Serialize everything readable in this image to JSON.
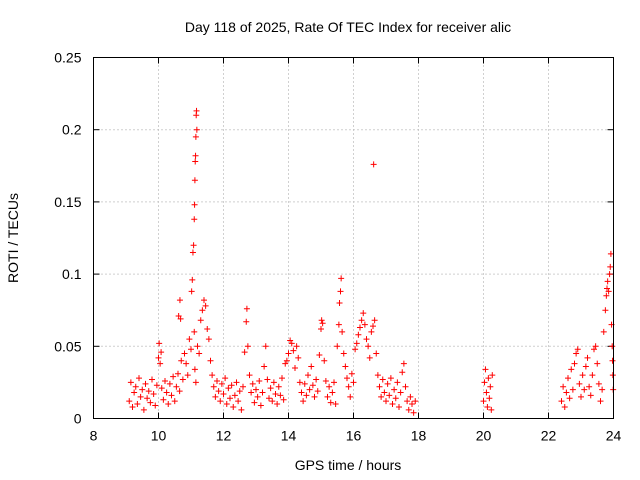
{
  "chart_data": {
    "type": "scatter",
    "title": "Day 118 of 2025, Rate Of TEC Index for receiver alic",
    "xlabel": "GPS time / hours",
    "ylabel": "ROTI / TECUs",
    "xlim": [
      8,
      24
    ],
    "ylim": [
      0,
      0.25
    ],
    "x_ticks": [
      8,
      10,
      12,
      14,
      16,
      18,
      20,
      22,
      24
    ],
    "x_tick_labels": [
      "8",
      "10",
      "12",
      "14",
      "16",
      "18",
      "20",
      "22",
      "24"
    ],
    "y_ticks": [
      0,
      0.05,
      0.1,
      0.15,
      0.2,
      0.25
    ],
    "y_tick_labels": [
      "0",
      "0.05",
      "0.1",
      "0.15",
      "0.2",
      "0.25"
    ],
    "grid": true,
    "marker": "+",
    "color": "#ff0000",
    "series": [
      {
        "name": "ROTI",
        "points": [
          [
            9.1,
            0.012
          ],
          [
            9.15,
            0.025
          ],
          [
            9.2,
            0.008
          ],
          [
            9.25,
            0.018
          ],
          [
            9.3,
            0.022
          ],
          [
            9.35,
            0.01
          ],
          [
            9.4,
            0.028
          ],
          [
            9.45,
            0.015
          ],
          [
            9.5,
            0.02
          ],
          [
            9.55,
            0.006
          ],
          [
            9.6,
            0.024
          ],
          [
            9.65,
            0.014
          ],
          [
            9.7,
            0.019
          ],
          [
            9.75,
            0.011
          ],
          [
            9.8,
            0.027
          ],
          [
            9.85,
            0.017
          ],
          [
            9.9,
            0.009
          ],
          [
            9.95,
            0.023
          ],
          [
            10.0,
            0.042
          ],
          [
            10.02,
            0.052
          ],
          [
            10.05,
            0.038
          ],
          [
            10.08,
            0.046
          ],
          [
            10.1,
            0.021
          ],
          [
            10.15,
            0.013
          ],
          [
            10.2,
            0.026
          ],
          [
            10.25,
            0.018
          ],
          [
            10.3,
            0.01
          ],
          [
            10.35,
            0.024
          ],
          [
            10.4,
            0.016
          ],
          [
            10.45,
            0.029
          ],
          [
            10.5,
            0.012
          ],
          [
            10.55,
            0.022
          ],
          [
            10.6,
            0.031
          ],
          [
            10.65,
            0.019
          ],
          [
            10.62,
            0.071
          ],
          [
            10.68,
            0.069
          ],
          [
            10.66,
            0.082
          ],
          [
            10.7,
            0.04
          ],
          [
            10.75,
            0.027
          ],
          [
            10.8,
            0.045
          ],
          [
            10.85,
            0.038
          ],
          [
            10.9,
            0.03
          ],
          [
            10.95,
            0.055
          ],
          [
            11.0,
            0.048
          ],
          [
            11.02,
            0.088
          ],
          [
            11.04,
            0.096
          ],
          [
            11.06,
            0.115
          ],
          [
            11.08,
            0.12
          ],
          [
            11.1,
            0.138
          ],
          [
            11.11,
            0.148
          ],
          [
            11.12,
            0.165
          ],
          [
            11.13,
            0.178
          ],
          [
            11.14,
            0.182
          ],
          [
            11.15,
            0.195
          ],
          [
            11.16,
            0.21
          ],
          [
            11.17,
            0.213
          ],
          [
            11.18,
            0.2
          ],
          [
            11.1,
            0.06
          ],
          [
            11.12,
            0.034
          ],
          [
            11.15,
            0.025
          ],
          [
            11.2,
            0.05
          ],
          [
            11.25,
            0.045
          ],
          [
            11.3,
            0.068
          ],
          [
            11.35,
            0.075
          ],
          [
            11.4,
            0.082
          ],
          [
            11.45,
            0.078
          ],
          [
            11.5,
            0.062
          ],
          [
            11.55,
            0.055
          ],
          [
            11.6,
            0.04
          ],
          [
            11.65,
            0.03
          ],
          [
            11.7,
            0.022
          ],
          [
            11.75,
            0.015
          ],
          [
            11.8,
            0.026
          ],
          [
            11.85,
            0.019
          ],
          [
            11.9,
            0.012
          ],
          [
            11.95,
            0.024
          ],
          [
            12.0,
            0.017
          ],
          [
            12.05,
            0.028
          ],
          [
            12.1,
            0.01
          ],
          [
            12.15,
            0.021
          ],
          [
            12.2,
            0.014
          ],
          [
            12.25,
            0.023
          ],
          [
            12.3,
            0.008
          ],
          [
            12.35,
            0.016
          ],
          [
            12.4,
            0.025
          ],
          [
            12.45,
            0.012
          ],
          [
            12.5,
            0.019
          ],
          [
            12.55,
            0.006
          ],
          [
            12.6,
            0.022
          ],
          [
            12.65,
            0.046
          ],
          [
            12.7,
            0.067
          ],
          [
            12.72,
            0.076
          ],
          [
            12.75,
            0.05
          ],
          [
            12.8,
            0.03
          ],
          [
            12.85,
            0.018
          ],
          [
            12.9,
            0.024
          ],
          [
            12.95,
            0.011
          ],
          [
            13.0,
            0.02
          ],
          [
            13.05,
            0.015
          ],
          [
            13.1,
            0.026
          ],
          [
            13.15,
            0.009
          ],
          [
            13.2,
            0.018
          ],
          [
            13.25,
            0.036
          ],
          [
            13.3,
            0.05
          ],
          [
            13.35,
            0.027
          ],
          [
            13.4,
            0.014
          ],
          [
            13.45,
            0.021
          ],
          [
            13.5,
            0.012
          ],
          [
            13.55,
            0.025
          ],
          [
            13.6,
            0.017
          ],
          [
            13.65,
            0.01
          ],
          [
            13.7,
            0.022
          ],
          [
            13.75,
            0.016
          ],
          [
            13.8,
            0.028
          ],
          [
            13.85,
            0.013
          ],
          [
            13.9,
            0.038
          ],
          [
            13.95,
            0.04
          ],
          [
            14.0,
            0.045
          ],
          [
            14.05,
            0.054
          ],
          [
            14.1,
            0.052
          ],
          [
            14.15,
            0.047
          ],
          [
            14.2,
            0.035
          ],
          [
            14.25,
            0.05
          ],
          [
            14.3,
            0.042
          ],
          [
            14.35,
            0.025
          ],
          [
            14.4,
            0.018
          ],
          [
            14.45,
            0.012
          ],
          [
            14.5,
            0.024
          ],
          [
            14.55,
            0.016
          ],
          [
            14.6,
            0.03
          ],
          [
            14.65,
            0.02
          ],
          [
            14.7,
            0.036
          ],
          [
            14.75,
            0.023
          ],
          [
            14.8,
            0.015
          ],
          [
            14.85,
            0.027
          ],
          [
            14.9,
            0.019
          ],
          [
            14.95,
            0.044
          ],
          [
            15.0,
            0.062
          ],
          [
            15.02,
            0.068
          ],
          [
            15.05,
            0.066
          ],
          [
            15.1,
            0.04
          ],
          [
            15.15,
            0.026
          ],
          [
            15.2,
            0.015
          ],
          [
            15.25,
            0.022
          ],
          [
            15.3,
            0.011
          ],
          [
            15.35,
            0.018
          ],
          [
            15.4,
            0.025
          ],
          [
            15.45,
            0.01
          ],
          [
            15.5,
            0.05
          ],
          [
            15.55,
            0.065
          ],
          [
            15.57,
            0.08
          ],
          [
            15.6,
            0.088
          ],
          [
            15.62,
            0.097
          ],
          [
            15.65,
            0.06
          ],
          [
            15.7,
            0.045
          ],
          [
            15.75,
            0.036
          ],
          [
            15.8,
            0.028
          ],
          [
            15.85,
            0.022
          ],
          [
            15.9,
            0.015
          ],
          [
            15.95,
            0.031
          ],
          [
            16.0,
            0.025
          ],
          [
            16.05,
            0.048
          ],
          [
            16.1,
            0.052
          ],
          [
            16.15,
            0.058
          ],
          [
            16.2,
            0.063
          ],
          [
            16.25,
            0.068
          ],
          [
            16.3,
            0.073
          ],
          [
            16.35,
            0.065
          ],
          [
            16.4,
            0.055
          ],
          [
            16.45,
            0.05
          ],
          [
            16.5,
            0.042
          ],
          [
            16.55,
            0.06
          ],
          [
            16.6,
            0.064
          ],
          [
            16.62,
            0.176
          ],
          [
            16.65,
            0.068
          ],
          [
            16.7,
            0.045
          ],
          [
            16.75,
            0.03
          ],
          [
            16.8,
            0.022
          ],
          [
            16.85,
            0.015
          ],
          [
            16.9,
            0.027
          ],
          [
            16.95,
            0.018
          ],
          [
            17.0,
            0.012
          ],
          [
            17.05,
            0.024
          ],
          [
            17.1,
            0.016
          ],
          [
            17.15,
            0.028
          ],
          [
            17.2,
            0.01
          ],
          [
            17.25,
            0.02
          ],
          [
            17.3,
            0.014
          ],
          [
            17.35,
            0.025
          ],
          [
            17.4,
            0.008
          ],
          [
            17.45,
            0.018
          ],
          [
            17.5,
            0.032
          ],
          [
            17.55,
            0.038
          ],
          [
            17.6,
            0.022
          ],
          [
            17.65,
            0.012
          ],
          [
            17.7,
            0.006
          ],
          [
            17.75,
            0.015
          ],
          [
            17.8,
            0.01
          ],
          [
            17.85,
            0.004
          ],
          [
            17.9,
            0.012
          ],
          [
            20.0,
            0.012
          ],
          [
            20.03,
            0.025
          ],
          [
            20.06,
            0.034
          ],
          [
            20.09,
            0.018
          ],
          [
            20.12,
            0.008
          ],
          [
            20.15,
            0.028
          ],
          [
            20.18,
            0.014
          ],
          [
            20.21,
            0.022
          ],
          [
            20.24,
            0.006
          ],
          [
            20.27,
            0.03
          ],
          [
            22.4,
            0.012
          ],
          [
            22.45,
            0.022
          ],
          [
            22.5,
            0.008
          ],
          [
            22.55,
            0.018
          ],
          [
            22.6,
            0.028
          ],
          [
            22.65,
            0.014
          ],
          [
            22.7,
            0.034
          ],
          [
            22.75,
            0.02
          ],
          [
            22.8,
            0.038
          ],
          [
            22.85,
            0.045
          ],
          [
            22.9,
            0.048
          ],
          [
            22.95,
            0.024
          ],
          [
            23.0,
            0.015
          ],
          [
            23.05,
            0.03
          ],
          [
            23.1,
            0.02
          ],
          [
            23.15,
            0.036
          ],
          [
            23.2,
            0.042
          ],
          [
            23.25,
            0.022
          ],
          [
            23.3,
            0.016
          ],
          [
            23.35,
            0.03
          ],
          [
            23.4,
            0.048
          ],
          [
            23.45,
            0.05
          ],
          [
            23.5,
            0.038
          ],
          [
            23.55,
            0.024
          ],
          [
            23.6,
            0.012
          ],
          [
            23.65,
            0.02
          ],
          [
            23.7,
            0.06
          ],
          [
            23.75,
            0.075
          ],
          [
            23.78,
            0.085
          ],
          [
            23.8,
            0.09
          ],
          [
            23.82,
            0.095
          ],
          [
            23.85,
            0.088
          ],
          [
            23.88,
            0.1
          ],
          [
            23.9,
            0.105
          ],
          [
            23.92,
            0.114
          ],
          [
            23.94,
            0.065
          ],
          [
            23.96,
            0.05
          ],
          [
            23.97,
            0.04
          ],
          [
            23.98,
            0.03
          ],
          [
            23.99,
            0.02
          ]
        ]
      }
    ]
  }
}
